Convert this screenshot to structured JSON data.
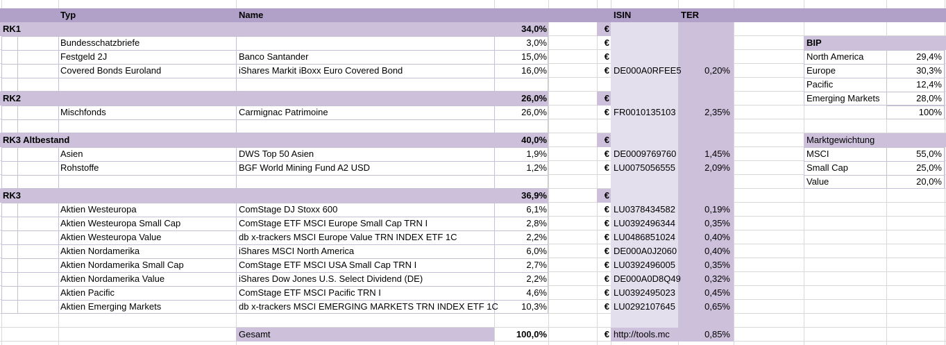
{
  "columns": {
    "typ": "Typ",
    "name": "Name",
    "isin": "ISIN",
    "ter": "TER"
  },
  "rows": [
    {
      "kind": "band",
      "typ": "RK1",
      "pct": "34,0%",
      "eur": "€"
    },
    {
      "kind": "item",
      "typ": "Bundesschatzbriefe",
      "name": "",
      "pct": "3,0%",
      "eur": "€",
      "isin": "",
      "ter": ""
    },
    {
      "kind": "item",
      "typ": "Festgeld 2J",
      "name": "Banco Santander",
      "pct": "15,0%",
      "eur": "€",
      "isin": "",
      "ter": ""
    },
    {
      "kind": "item",
      "typ": "Covered Bonds Euroland",
      "name": "iShares Markit iBoxx Euro Covered Bond",
      "pct": "16,0%",
      "eur": "€",
      "isin": "DE000A0RFEE5",
      "ter": "0,20%"
    },
    {
      "kind": "empty"
    },
    {
      "kind": "band",
      "typ": "RK2",
      "pct": "26,0%",
      "eur": "€"
    },
    {
      "kind": "item",
      "typ": "Mischfonds",
      "name": "Carmignac Patrimoine",
      "pct": "26,0%",
      "eur": "€",
      "isin": "FR0010135103",
      "ter": "2,35%"
    },
    {
      "kind": "empty"
    },
    {
      "kind": "band",
      "typ": "RK3 Altbestand",
      "pct": "40,0%",
      "eur": "€"
    },
    {
      "kind": "item",
      "typ": "Asien",
      "name": "DWS Top 50 Asien",
      "pct": "1,9%",
      "eur": "€",
      "isin": "DE0009769760",
      "ter": "1,45%"
    },
    {
      "kind": "item",
      "typ": "Rohstoffe",
      "name": "BGF World Mining Fund A2 USD",
      "pct": "1,2%",
      "eur": "€",
      "isin": "LU0075056555",
      "ter": "2,09%"
    },
    {
      "kind": "empty"
    },
    {
      "kind": "band",
      "typ": "RK3",
      "pct": "36,9%",
      "eur": "€"
    },
    {
      "kind": "item",
      "typ": "Aktien Westeuropa",
      "name": "ComStage DJ Stoxx 600",
      "pct": "6,1%",
      "eur": "€",
      "isin": "LU0378434582",
      "ter": "0,19%"
    },
    {
      "kind": "item",
      "typ": "Aktien Westeuropa Small Cap",
      "name": "ComStage ETF MSCI Europe Small Cap TRN I",
      "pct": "2,8%",
      "eur": "€",
      "isin": "LU0392496344",
      "ter": "0,35%"
    },
    {
      "kind": "item",
      "typ": "Aktien Westeuropa Value",
      "name": "db x-trackers MSCI Europe Value TRN INDEX ETF 1C",
      "pct": "2,2%",
      "eur": "€",
      "isin": "LU0486851024",
      "ter": "0,40%"
    },
    {
      "kind": "item",
      "typ": "Aktien Nordamerika",
      "name": "iShares MSCI North America",
      "pct": "6,0%",
      "eur": "€",
      "isin": "DE000A0J2060",
      "ter": "0,40%"
    },
    {
      "kind": "item",
      "typ": "Aktien Nordamerika Small Cap",
      "name": "ComStage ETF MSCI USA Small Cap TRN I",
      "pct": "2,7%",
      "eur": "€",
      "isin": "LU0392496005",
      "ter": "0,35%"
    },
    {
      "kind": "item",
      "typ": "Aktien Nordamerika Value",
      "name": "iShares Dow Jones U.S. Select Dividend (DE)",
      "pct": "2,2%",
      "eur": "€",
      "isin": "DE000A0D8Q49",
      "ter": "0,32%"
    },
    {
      "kind": "item",
      "typ": "Aktien Pacific",
      "name": "ComStage ETF MSCI Pacific TRN I",
      "pct": "4,6%",
      "eur": "€",
      "isin": "LU0392495023",
      "ter": "0,45%"
    },
    {
      "kind": "item",
      "typ": "Aktien Emerging Markets",
      "name": "db x-trackers MSCI EMERGING MARKETS TRN INDEX ETF 1C",
      "pct": "10,3%",
      "eur": "€",
      "isin": "LU0292107645",
      "ter": "0,65%"
    },
    {
      "kind": "gap"
    },
    {
      "kind": "total",
      "name": "Gesamt",
      "pct": "100,0%",
      "eur": "€",
      "isin": "http://tools.mc",
      "ter": "0,85%"
    }
  ],
  "side": {
    "bip": {
      "title": "BIP",
      "rows": [
        {
          "label": "North America",
          "value": "29,4%"
        },
        {
          "label": "Europe",
          "value": "30,3%"
        },
        {
          "label": "Pacific",
          "value": "12,4%"
        },
        {
          "label": "Emerging Markets",
          "value": "28,0%"
        }
      ],
      "total": "100%"
    },
    "markt": {
      "title": "Marktgewichtung",
      "rows": [
        {
          "label": "MSCI",
          "value": "55,0%"
        },
        {
          "label": "Small Cap",
          "value": "25,0%"
        },
        {
          "label": "Value",
          "value": "20,0%"
        }
      ]
    }
  },
  "colors": {
    "header_fill": "#B1A0C7",
    "section_fill": "#CCC0DA",
    "isin_column_fill": "#E4DFEC",
    "ter_column_fill": "#CCC0DA"
  }
}
